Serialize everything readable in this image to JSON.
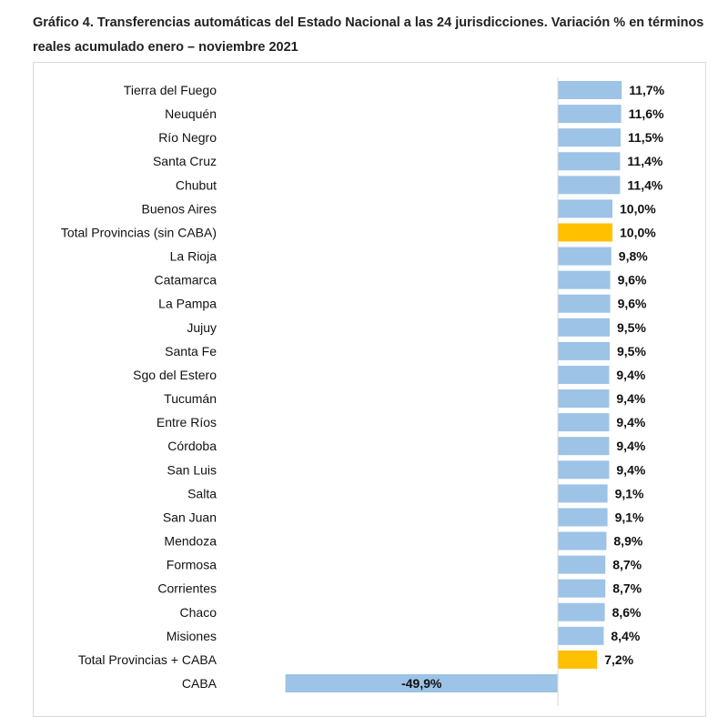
{
  "chart_data": {
    "type": "bar",
    "orientation": "horizontal",
    "title": "Gráfico 4. Transferencias automáticas del Estado Nacional a las 24 jurisdicciones. Variación % en términos reales acumulado enero – noviembre 2021",
    "xlabel": "",
    "ylabel": "",
    "grid": false,
    "categories": [
      "Tierra del Fuego",
      "Neuquén",
      "Río Negro",
      "Santa Cruz",
      "Chubut",
      "Buenos Aires",
      "Total Provincias (sin CABA)",
      "La Rioja",
      "Catamarca",
      "La Pampa",
      "Jujuy",
      "Santa Fe",
      "Sgo del Estero",
      "Tucumán",
      "Entre Ríos",
      "Córdoba",
      "San Luis",
      "Salta",
      "San Juan",
      "Mendoza",
      "Formosa",
      "Corrientes",
      "Chaco",
      "Misiones",
      "Total Provincias + CABA",
      "CABA"
    ],
    "values": [
      11.7,
      11.6,
      11.5,
      11.4,
      11.4,
      10.0,
      10.0,
      9.8,
      9.6,
      9.6,
      9.5,
      9.5,
      9.4,
      9.4,
      9.4,
      9.4,
      9.4,
      9.1,
      9.1,
      8.9,
      8.7,
      8.7,
      8.6,
      8.4,
      7.2,
      -49.9
    ],
    "labels": [
      "11,7%",
      "11,6%",
      "11,5%",
      "11,4%",
      "11,4%",
      "10,0%",
      "10,0%",
      "9,8%",
      "9,6%",
      "9,6%",
      "9,5%",
      "9,5%",
      "9,4%",
      "9,4%",
      "9,4%",
      "9,4%",
      "9,4%",
      "9,1%",
      "9,1%",
      "8,9%",
      "8,7%",
      "8,7%",
      "8,6%",
      "8,4%",
      "7,2%",
      "-49,9%"
    ],
    "highlight": [
      "Total Provincias (sin CABA)",
      "Total Provincias + CABA"
    ],
    "colors": {
      "default": "#9dc3e6",
      "highlight": "#ffc000",
      "axis": "#d9d9d9"
    }
  }
}
